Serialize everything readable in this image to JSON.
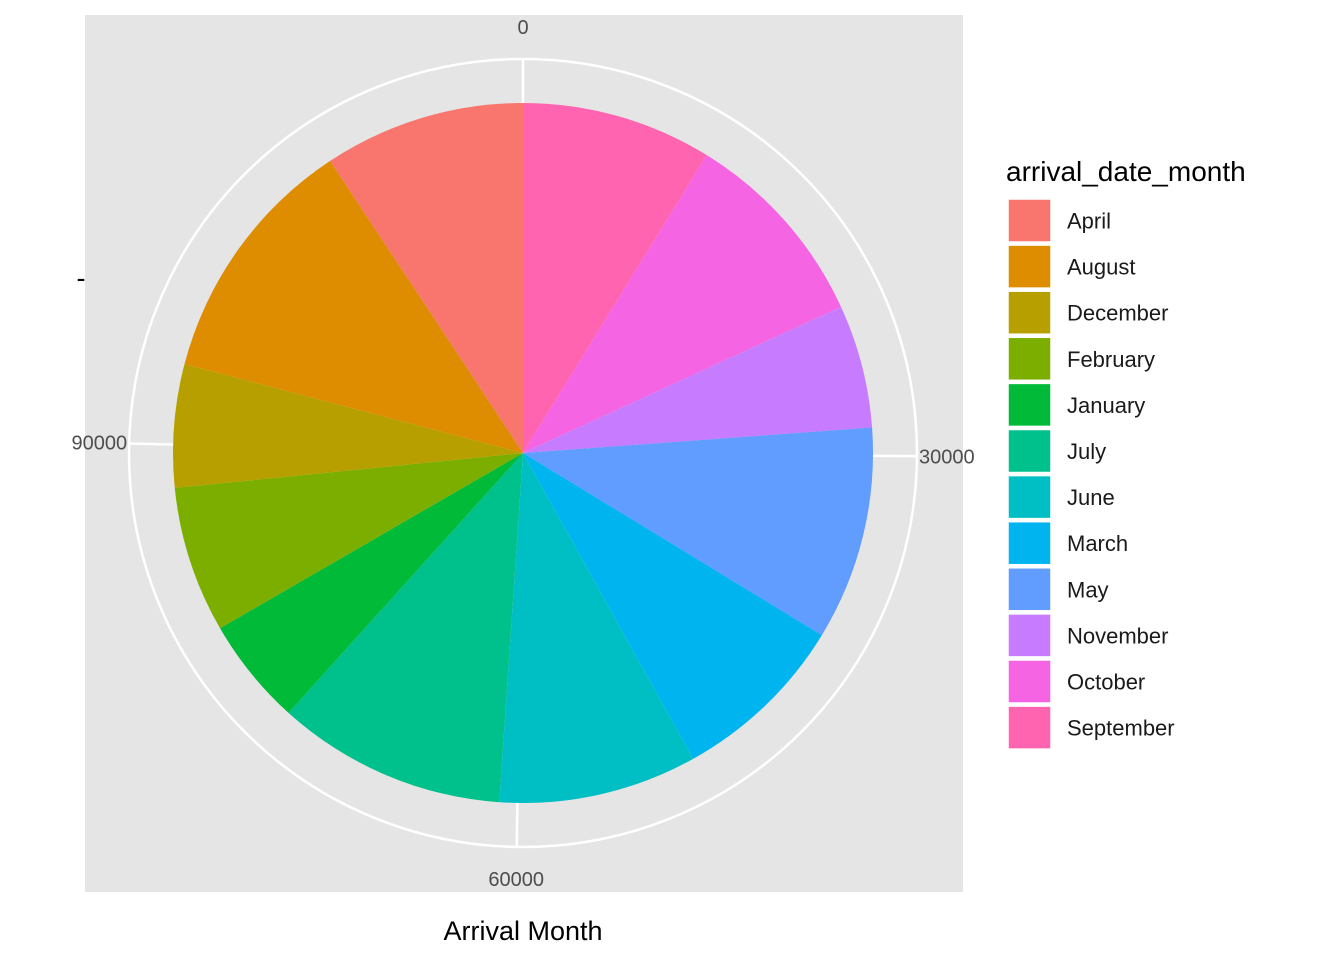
{
  "chart_data": {
    "type": "pie",
    "xlabel": "Arrival Month",
    "ylabel": "-",
    "legend_title": "arrival_date_month",
    "legend_position": "right",
    "total": 119390,
    "theta_ticks": [
      {
        "value": 0,
        "label": "0"
      },
      {
        "value": 30000,
        "label": "30000"
      },
      {
        "value": 60000,
        "label": "60000"
      },
      {
        "value": 90000,
        "label": "90000"
      }
    ],
    "categories": [
      "April",
      "August",
      "December",
      "February",
      "January",
      "July",
      "June",
      "March",
      "May",
      "November",
      "October",
      "September"
    ],
    "values": [
      11089,
      13877,
      6780,
      8068,
      5929,
      12661,
      10939,
      9794,
      11791,
      6794,
      11160,
      10508
    ],
    "colors": [
      "#F8766D",
      "#DE8C00",
      "#B79F00",
      "#7CAE00",
      "#00BA38",
      "#00C08B",
      "#00BFC4",
      "#00B4F0",
      "#619CFF",
      "#C77CFF",
      "#F564E3",
      "#FF64B0"
    ],
    "stack_order": [
      "September",
      "October",
      "November",
      "May",
      "March",
      "June",
      "July",
      "January",
      "February",
      "December",
      "August",
      "April"
    ],
    "grid": true,
    "panel_background": "#E5E5E5",
    "grid_color": "#FFFFFF"
  }
}
